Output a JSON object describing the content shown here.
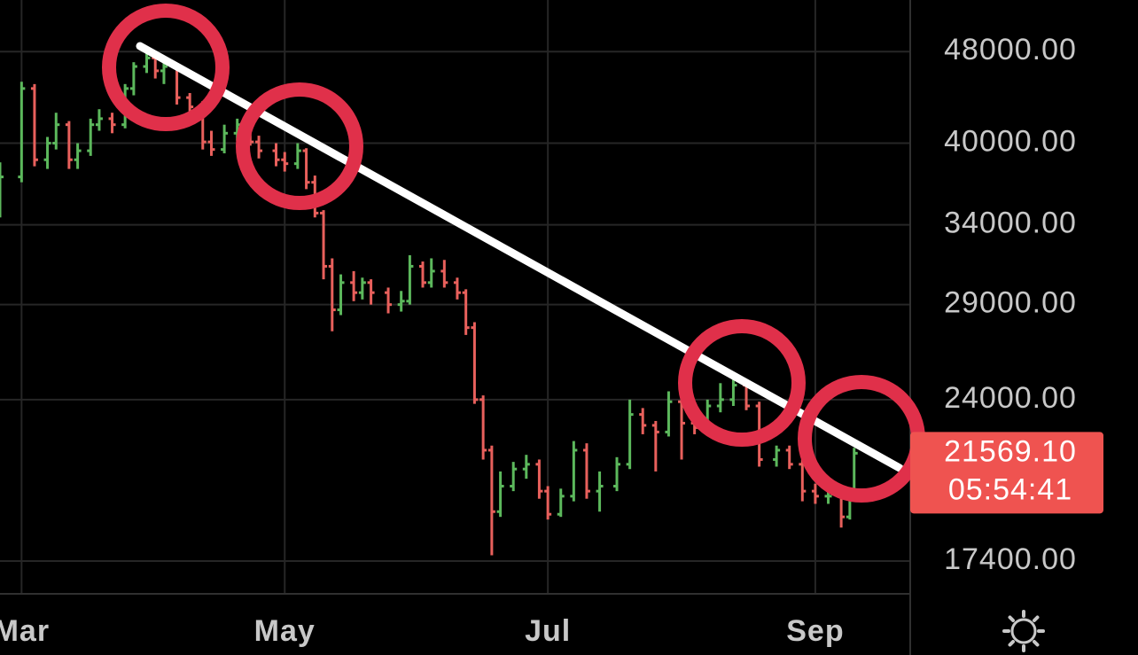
{
  "chart_data": {
    "type": "ohlc",
    "log_scale": true,
    "grid": true,
    "up_color": "#5cb85c",
    "down_color": "#e8605c",
    "x": [
      -5,
      0,
      3,
      6,
      8,
      11,
      13,
      16,
      18,
      21,
      24,
      26,
      29,
      31,
      33,
      36,
      39,
      42,
      44,
      47,
      50,
      53,
      55,
      59,
      61,
      64,
      66,
      68,
      70,
      72,
      74,
      77,
      79,
      81,
      85,
      88,
      90,
      93,
      95,
      98,
      101,
      103,
      105,
      107,
      109,
      111,
      114,
      117,
      120,
      122,
      125,
      128,
      131,
      134,
      138,
      141,
      144,
      147,
      150,
      153,
      156,
      159,
      162,
      165,
      168,
      171,
      175,
      178,
      181,
      184,
      187,
      190,
      192,
      193
    ],
    "open": [
      36000,
      37400,
      44600,
      38700,
      40000,
      41500,
      38700,
      39400,
      41500,
      42000,
      41500,
      44600,
      46600,
      47400,
      46200,
      46600,
      43800,
      43000,
      40100,
      39500,
      40800,
      41500,
      40100,
      39400,
      38700,
      38400,
      39400,
      37000,
      34800,
      31300,
      28700,
      30300,
      29700,
      30300,
      29700,
      29000,
      29200,
      31300,
      30300,
      31000,
      30300,
      29700,
      27700,
      24000,
      21700,
      19200,
      20200,
      20900,
      21100,
      20000,
      19100,
      19800,
      21700,
      20000,
      20200,
      21100,
      23300,
      22800,
      22500,
      23900,
      22900,
      22700,
      23700,
      24000,
      24700,
      23700,
      21300,
      21700,
      21100,
      20000,
      19800,
      19800,
      19000,
      19800
    ],
    "high": [
      38500,
      45200,
      45000,
      40500,
      42500,
      41800,
      40000,
      42000,
      42800,
      42500,
      45000,
      47000,
      48000,
      47800,
      47200,
      46800,
      44200,
      43500,
      41000,
      41500,
      42000,
      41800,
      40600,
      40000,
      39300,
      40000,
      39600,
      37500,
      35000,
      31800,
      30800,
      31000,
      30600,
      30500,
      30000,
      29800,
      32000,
      31600,
      31800,
      31700,
      30600,
      29900,
      28000,
      24200,
      21900,
      20800,
      21200,
      21500,
      21300,
      20200,
      20100,
      22100,
      22000,
      20800,
      21400,
      24000,
      23600,
      23000,
      24400,
      24300,
      23300,
      24000,
      24800,
      25100,
      25000,
      23900,
      21900,
      21900,
      21300,
      20300,
      20100,
      20000,
      20000,
      21800
    ],
    "low": [
      34500,
      37000,
      38200,
      38000,
      39500,
      38000,
      38000,
      39000,
      41000,
      40800,
      41200,
      44000,
      46000,
      45500,
      45000,
      43200,
      42500,
      39500,
      39000,
      39200,
      40200,
      39800,
      38800,
      38200,
      37800,
      38000,
      36500,
      34500,
      30500,
      27500,
      28400,
      29200,
      29300,
      29000,
      28500,
      28600,
      29000,
      30000,
      30000,
      30000,
      29300,
      27300,
      23800,
      21300,
      17600,
      19000,
      20000,
      20500,
      19700,
      18900,
      19000,
      19600,
      19700,
      19200,
      20000,
      20900,
      22400,
      20800,
      22300,
      21300,
      22400,
      22500,
      23400,
      23700,
      23500,
      21000,
      21000,
      20900,
      19600,
      19500,
      19500,
      18600,
      18900,
      19700
    ],
    "close": [
      37400,
      44600,
      38700,
      40000,
      41500,
      38700,
      39400,
      41500,
      42000,
      41500,
      44600,
      46600,
      47400,
      46200,
      46600,
      43800,
      43000,
      40100,
      39500,
      40800,
      41500,
      40100,
      39400,
      38700,
      38400,
      39400,
      37000,
      34800,
      31300,
      28700,
      30300,
      29700,
      30300,
      29700,
      29000,
      29200,
      31300,
      30300,
      31000,
      30300,
      29700,
      27700,
      24000,
      21700,
      19200,
      20200,
      20900,
      21100,
      20000,
      19100,
      19800,
      21700,
      20000,
      20200,
      21100,
      23300,
      22800,
      22500,
      23900,
      22900,
      22700,
      23700,
      24000,
      24700,
      23700,
      21300,
      21700,
      21100,
      20000,
      19800,
      19800,
      19000,
      19800,
      21569.1
    ],
    "xlim": [
      -5,
      206
    ],
    "xticks": [
      {
        "value": 0,
        "label": "Mar"
      },
      {
        "value": 61,
        "label": "May"
      },
      {
        "value": 122,
        "label": "Jul"
      },
      {
        "value": 184,
        "label": "Sep"
      }
    ],
    "ylim": [
      16300,
      53200
    ],
    "yticks": [
      {
        "value": 48000,
        "label": "48000.00"
      },
      {
        "value": 40000,
        "label": "40000.00"
      },
      {
        "value": 34000,
        "label": "34000.00"
      },
      {
        "value": 29000,
        "label": "29000.00"
      },
      {
        "value": 24000,
        "label": "24000.00"
      },
      {
        "value": 17400,
        "label": "17400.00"
      }
    ],
    "last_price": {
      "value": 21569.1,
      "label": "21569.10"
    },
    "last_price_color": "#ef5350",
    "countdown": "05:54:41"
  }
}
